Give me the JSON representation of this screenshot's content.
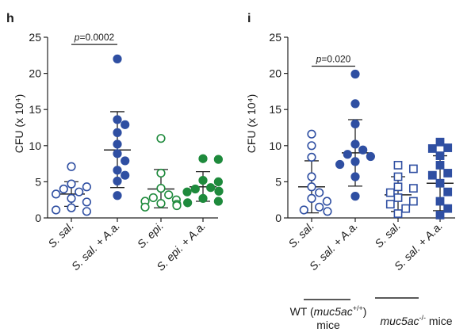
{
  "chart_data": [
    {
      "panel_label": "h",
      "type": "scatter",
      "ylabel": "CFU (x 10⁴)",
      "ylim": [
        0,
        25
      ],
      "yticks": [
        0,
        5,
        10,
        15,
        20,
        25
      ],
      "categories": [
        "S. sal.",
        "S. sal. + A.a.",
        "S. epi.",
        "S. epi. + A.a."
      ],
      "series": [
        {
          "category": "S. sal.",
          "color": "#2f4fa2",
          "filled": false,
          "marker": "circle",
          "values": [
            7.1,
            4.7,
            4.3,
            4.0,
            3.6,
            3.3,
            2.7,
            2.2,
            1.4,
            1.1,
            0.9
          ],
          "mean": 3.3,
          "sd": [
            1.6,
            5.0
          ]
        },
        {
          "category": "S. sal. + A.a.",
          "color": "#2f4fa2",
          "filled": true,
          "marker": "circle",
          "values": [
            22.0,
            13.6,
            12.9,
            11.8,
            10.2,
            8.9,
            7.9,
            6.6,
            5.9,
            5.1,
            3.1
          ],
          "mean": 9.4,
          "sd": [
            4.2,
            14.7
          ]
        },
        {
          "category": "S. epi.",
          "color": "#1e8a3c",
          "filled": false,
          "marker": "circle",
          "values": [
            11.0,
            6.2,
            4.1,
            3.2,
            2.8,
            2.5,
            2.3,
            2.0,
            1.9,
            1.7,
            1.5
          ],
          "mean": 4.0,
          "sd": [
            1.4,
            6.7
          ]
        },
        {
          "category": "S. epi. + A.a.",
          "color": "#1e8a3c",
          "filled": true,
          "marker": "circle",
          "values": [
            8.2,
            8.1,
            5.2,
            5.0,
            4.2,
            4.0,
            3.7,
            3.6,
            2.7,
            2.3,
            2.1
          ],
          "mean": 4.3,
          "sd": [
            2.3,
            6.4
          ]
        }
      ],
      "annotations": [
        {
          "text": "p=0.0002",
          "between": [
            "S. sal.",
            "S. sal. + A.a."
          ],
          "y": 24.0
        }
      ]
    },
    {
      "panel_label": "i",
      "type": "scatter",
      "ylabel": "CFU (x 10⁴)",
      "ylim": [
        0,
        25
      ],
      "yticks": [
        0,
        5,
        10,
        15,
        20,
        25
      ],
      "categories": [
        "S. sal.",
        "S. sal. + A.a.",
        "S. sal.",
        "S. sal. + A.a."
      ],
      "series": [
        {
          "category": "S. sal.",
          "color": "#2f4fa2",
          "filled": false,
          "marker": "circle",
          "values": [
            11.6,
            10.0,
            8.4,
            5.7,
            4.3,
            3.5,
            2.7,
            2.3,
            1.5,
            1.1,
            0.9
          ],
          "mean": 4.3,
          "sd": [
            0.7,
            7.9
          ]
        },
        {
          "category": "S. sal. + A.a.",
          "color": "#2f4fa2",
          "filled": true,
          "marker": "circle",
          "values": [
            19.9,
            15.8,
            13.0,
            10.2,
            9.4,
            8.8,
            8.5,
            7.8,
            7.4,
            5.7,
            3.0
          ],
          "mean": 9.0,
          "sd": [
            4.4,
            13.6
          ]
        },
        {
          "category": "S. sal.",
          "color": "#2f4fa2",
          "filled": false,
          "marker": "square",
          "values": [
            7.3,
            6.8,
            5.7,
            4.3,
            4.1,
            3.5,
            2.8,
            2.3,
            1.9,
            1.3,
            0.6
          ],
          "mean": 3.2,
          "sd": [
            0.9,
            5.7
          ]
        },
        {
          "category": "S. sal. + A.a.",
          "color": "#2f4fa2",
          "filled": true,
          "marker": "square",
          "values": [
            10.5,
            9.7,
            9.6,
            8.6,
            7.3,
            6.2,
            5.9,
            4.8,
            3.6,
            2.3,
            1.3,
            0.4
          ],
          "mean": 4.8,
          "sd": [
            1.0,
            8.6
          ]
        }
      ],
      "annotations": [
        {
          "text": "p=0.020",
          "between": [
            "S. sal.",
            "S. sal. + A.a."
          ],
          "y": 21.0
        }
      ],
      "group_labels": [
        {
          "line1_pre": "WT (",
          "line1_em": "muc5ac",
          "line1_sup": "+/+",
          "line1_post": ")",
          "line2": "mice"
        },
        {
          "line1_em": "muc5ac",
          "line1_sup": "-/-",
          "line1_post": " mice"
        }
      ]
    }
  ]
}
